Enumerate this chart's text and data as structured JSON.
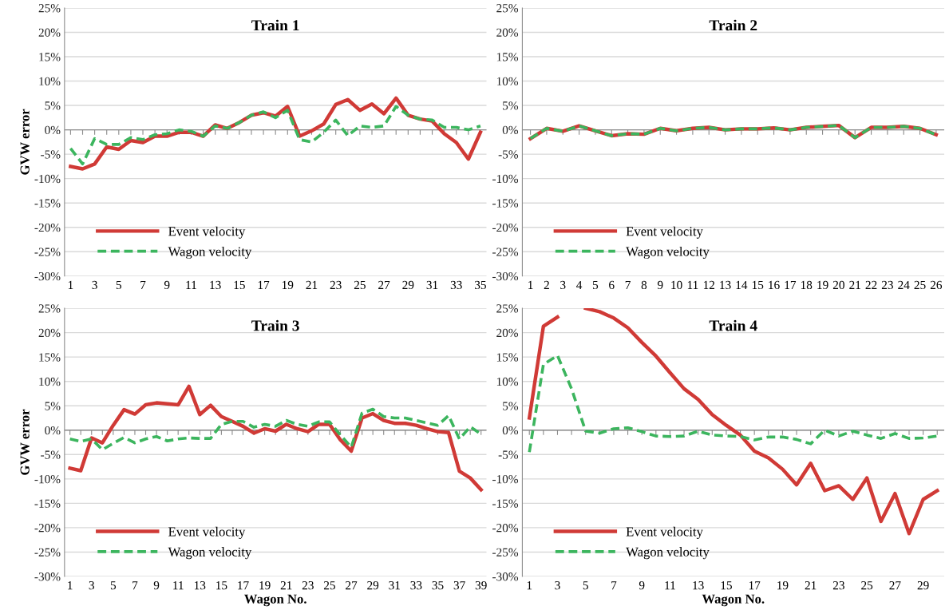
{
  "chart_data": [
    {
      "type": "line",
      "title": "Train 1",
      "ylabel": "GVW error",
      "categories": [
        "1",
        null,
        "3",
        null,
        "5",
        null,
        "7",
        null,
        "9",
        null,
        "11",
        null,
        "13",
        null,
        "15",
        null,
        "17",
        null,
        "19",
        null,
        "21",
        null,
        "23",
        null,
        "25",
        null,
        "27",
        null,
        "29",
        null,
        "31",
        null,
        "33",
        null,
        "35"
      ],
      "series": [
        {
          "name": "Event velocity",
          "color": "#d03a36",
          "line_style": "solid",
          "values": [
            -7.5,
            -8,
            -7,
            -3.5,
            -4,
            -2.2,
            -2.6,
            -1.3,
            -1.3,
            -0.5,
            -0.5,
            -1.3,
            1,
            0.3,
            1.5,
            3,
            3.5,
            2.8,
            4.8,
            -1.3,
            -0.2,
            1.2,
            5.2,
            6.2,
            4,
            5.3,
            3.3,
            6.5,
            3,
            2.2,
            1.8,
            -0.8,
            -2.6,
            -6,
            -0.5
          ]
        },
        {
          "name": "Wagon velocity",
          "color": "#3cb55e",
          "line_style": "dashed",
          "values": [
            -3.8,
            -7,
            -1.8,
            -3,
            -3,
            -1.6,
            -2,
            -1,
            -0.8,
            0,
            -0.3,
            -1.3,
            0.8,
            0.3,
            1.5,
            3,
            3.7,
            2.5,
            4,
            -2,
            -2.5,
            -0.5,
            2,
            -1.2,
            0.8,
            0.5,
            0.8,
            4.8,
            3,
            2.2,
            2,
            0.5,
            0.5,
            0,
            0.8
          ]
        }
      ],
      "ylim": [
        -30,
        25
      ],
      "yticks": [
        {
          "value": -30,
          "label": "-30%"
        },
        {
          "value": -25,
          "label": "-25%"
        },
        {
          "value": -20,
          "label": "-20%"
        },
        {
          "value": -15,
          "label": "-15%"
        },
        {
          "value": -10,
          "label": "-10%"
        },
        {
          "value": -5,
          "label": "-5%"
        },
        {
          "value": 0,
          "label": "0%"
        },
        {
          "value": 5,
          "label": "5%"
        },
        {
          "value": 10,
          "label": "10%"
        },
        {
          "value": 15,
          "label": "15%"
        },
        {
          "value": 20,
          "label": "20%"
        },
        {
          "value": 25,
          "label": "25%"
        }
      ],
      "grid": "y",
      "legend": "bottom left"
    },
    {
      "type": "line",
      "title": "Train 2",
      "categories": [
        "1",
        "2",
        "3",
        "4",
        "5",
        "6",
        "7",
        "8",
        "9",
        "10",
        "11",
        "12",
        "13",
        "14",
        "15",
        "16",
        "17",
        "18",
        "19",
        "20",
        "21",
        "22",
        "23",
        "24",
        "25",
        "26"
      ],
      "series": [
        {
          "name": "Event velocity",
          "color": "#d03a36",
          "line_style": "solid",
          "values": [
            -1.8,
            0.3,
            -0.3,
            0.8,
            -0.2,
            -1.2,
            -0.8,
            -0.9,
            0.3,
            -0.2,
            0.3,
            0.5,
            0,
            0.2,
            0.2,
            0.4,
            0,
            0.5,
            0.7,
            0.9,
            -1.6,
            0.5,
            0.5,
            0.7,
            0.3,
            -1
          ]
        },
        {
          "name": "Wagon velocity",
          "color": "#3cb55e",
          "line_style": "dashed",
          "values": [
            -1.8,
            0.3,
            -0.3,
            0.8,
            -0.2,
            -1.2,
            -0.8,
            -0.9,
            0.3,
            -0.2,
            0.3,
            0.5,
            0,
            0.2,
            0.2,
            0.4,
            0,
            0.5,
            0.7,
            0.9,
            -1.6,
            0.5,
            0.5,
            0.7,
            0.3,
            -1
          ]
        }
      ],
      "ylim": [
        -30,
        25
      ],
      "yticks": [
        {
          "value": -30,
          "label": "-30%"
        },
        {
          "value": -25,
          "label": "-25%"
        },
        {
          "value": -20,
          "label": "-20%"
        },
        {
          "value": -15,
          "label": "-15%"
        },
        {
          "value": -10,
          "label": "-10%"
        },
        {
          "value": -5,
          "label": "-5%"
        },
        {
          "value": 0,
          "label": "0%"
        },
        {
          "value": 5,
          "label": "5%"
        },
        {
          "value": 10,
          "label": "10%"
        },
        {
          "value": 15,
          "label": "15%"
        },
        {
          "value": 20,
          "label": "20%"
        },
        {
          "value": 25,
          "label": "25%"
        }
      ],
      "grid": "y",
      "legend": "bottom left"
    },
    {
      "type": "line",
      "title": "Train 3",
      "ylabel": "GVW error",
      "xlabel": "Wagon No.",
      "categories": [
        "1",
        null,
        "3",
        null,
        "5",
        null,
        "7",
        null,
        "9",
        null,
        "11",
        null,
        "13",
        null,
        "15",
        null,
        "17",
        null,
        "19",
        null,
        "21",
        null,
        "23",
        null,
        "25",
        null,
        "27",
        null,
        "29",
        null,
        "31",
        null,
        "33",
        null,
        "35",
        null,
        "37",
        null,
        "39"
      ],
      "series": [
        {
          "name": "Event velocity",
          "color": "#d03a36",
          "line_style": "solid",
          "values": [
            -7.8,
            -8.3,
            -1.6,
            -2.6,
            1,
            4.2,
            3.3,
            5.2,
            5.6,
            5.4,
            5.2,
            9,
            3.2,
            5.1,
            2.8,
            1.8,
            0.8,
            -0.6,
            0.3,
            -0.2,
            1.2,
            0.3,
            -0.3,
            1.2,
            1.2,
            -2,
            -4.3,
            2.5,
            3.4,
            2,
            1.4,
            1.4,
            1,
            0.3,
            -0.3,
            -0.5,
            -8.4,
            -9.8,
            -12.2
          ]
        },
        {
          "name": "Wagon velocity",
          "color": "#3cb55e",
          "line_style": "dashed",
          "values": [
            -1.8,
            -2.3,
            -1.8,
            -4,
            -2.7,
            -1.5,
            -2.6,
            -1.8,
            -1.3,
            -2.2,
            -1.8,
            -1.6,
            -1.7,
            -1.7,
            1.2,
            1.8,
            1.8,
            0.6,
            1.2,
            0.8,
            2,
            1.2,
            0.8,
            1.7,
            1.7,
            -1,
            -3.5,
            3.5,
            4.3,
            2.8,
            2.5,
            2.5,
            2,
            1.5,
            1,
            3,
            -1.8,
            0.7,
            -0.8
          ]
        }
      ],
      "ylim": [
        -30,
        25
      ],
      "yticks": [
        {
          "value": -30,
          "label": "-30%"
        },
        {
          "value": -25,
          "label": "-25%"
        },
        {
          "value": -20,
          "label": "-20%"
        },
        {
          "value": -15,
          "label": "-15%"
        },
        {
          "value": -10,
          "label": "-10%"
        },
        {
          "value": -5,
          "label": "-5%"
        },
        {
          "value": 0,
          "label": "0%"
        },
        {
          "value": 5,
          "label": "5%"
        },
        {
          "value": 10,
          "label": "10%"
        },
        {
          "value": 15,
          "label": "15%"
        },
        {
          "value": 20,
          "label": "20%"
        },
        {
          "value": 25,
          "label": "25%"
        }
      ],
      "grid": "y",
      "legend": "bottom left"
    },
    {
      "type": "line",
      "title": "Train 4",
      "xlabel": "Wagon No.",
      "categories": [
        "1",
        null,
        "3",
        null,
        "5",
        null,
        "7",
        null,
        "9",
        null,
        "11",
        null,
        "13",
        null,
        "15",
        null,
        "17",
        null,
        "19",
        null,
        "21",
        null,
        "23",
        null,
        "25",
        null,
        "27",
        null,
        "29",
        null
      ],
      "series": [
        {
          "name": "Event velocity",
          "color": "#d03a36",
          "line_style": "solid",
          "values": [
            2.5,
            21.3,
            23.2,
            null,
            25,
            24.3,
            23,
            21,
            18,
            15.2,
            11.8,
            8.5,
            6.3,
            3.2,
            1,
            -1,
            -4.3,
            -5.7,
            -8,
            -11.2,
            -6.8,
            -12.4,
            -11.4,
            -14.2,
            -9.8,
            -18.7,
            -13,
            -21.2,
            -14.2,
            -12.4
          ]
        },
        {
          "name": "Wagon velocity",
          "color": "#3cb55e",
          "line_style": "dashed",
          "values": [
            -4.5,
            13.5,
            15.3,
            8.5,
            -0.2,
            -0.6,
            0.3,
            0.5,
            -0.3,
            -1.2,
            -1.3,
            -1.2,
            -0.2,
            -1,
            -1.2,
            -1.3,
            -2,
            -1.4,
            -1.4,
            -1.9,
            -2.8,
            0,
            -1.2,
            -0.2,
            -1,
            -1.7,
            -0.7,
            -1.7,
            -1.6,
            -1.2
          ]
        }
      ],
      "ylim": [
        -30,
        25
      ],
      "yticks": [
        {
          "value": -30,
          "label": "-30%"
        },
        {
          "value": -25,
          "label": "-25%"
        },
        {
          "value": -20,
          "label": "-20%"
        },
        {
          "value": -15,
          "label": "-15%"
        },
        {
          "value": -10,
          "label": "-10%"
        },
        {
          "value": -5,
          "label": "-5%"
        },
        {
          "value": 0,
          "label": "0%"
        },
        {
          "value": 5,
          "label": "5%"
        },
        {
          "value": 10,
          "label": "10%"
        },
        {
          "value": 15,
          "label": "15%"
        },
        {
          "value": 20,
          "label": "20%"
        },
        {
          "value": 25,
          "label": "25%"
        }
      ],
      "grid": "y",
      "legend": "bottom left"
    }
  ]
}
